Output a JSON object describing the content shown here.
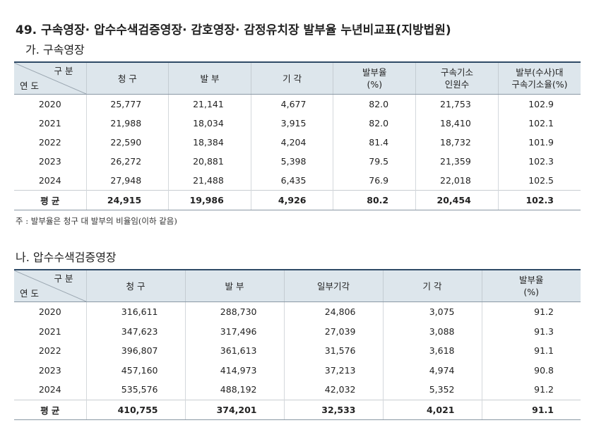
{
  "title": "49. 구속영장· 압수수색검증영장· 감호영장· 감정유치장 발부율 누년비교표(지방법원)",
  "section1": {
    "heading": "가. 구속영장",
    "table": {
      "corner": {
        "top": "구 분",
        "bottom": "연 도"
      },
      "columns": [
        [
          "청 구"
        ],
        [
          "발 부"
        ],
        [
          "기 각"
        ],
        [
          "발부율",
          "(%)"
        ],
        [
          "구속기소",
          "인원수"
        ],
        [
          "발부(수사)대",
          "구속기소율(%)"
        ]
      ],
      "rows": [
        [
          "2020",
          "25,777",
          "21,141",
          "4,677",
          "82.0",
          "21,753",
          "102.9"
        ],
        [
          "2021",
          "21,988",
          "18,034",
          "3,915",
          "82.0",
          "18,410",
          "102.1"
        ],
        [
          "2022",
          "22,590",
          "18,384",
          "4,204",
          "81.4",
          "18,732",
          "101.9"
        ],
        [
          "2023",
          "26,272",
          "20,881",
          "5,398",
          "79.5",
          "21,359",
          "102.3"
        ],
        [
          "2024",
          "27,948",
          "21,488",
          "6,435",
          "76.9",
          "22,018",
          "102.5"
        ],
        [
          "평 균",
          "24,915",
          "19,986",
          "4,926",
          "80.2",
          "20,454",
          "102.3"
        ]
      ]
    },
    "note": "주 : 발부율은 청구 대 발부의 비율임(이하 같음)"
  },
  "section2": {
    "heading": "나. 압수수색검증영장",
    "table": {
      "corner": {
        "top": "구 분",
        "bottom": "연 도"
      },
      "columns": [
        [
          "청 구"
        ],
        [
          "발 부"
        ],
        [
          "일부기각"
        ],
        [
          "기 각"
        ],
        [
          "발부율",
          "(%)"
        ]
      ],
      "rows": [
        [
          "2020",
          "316,611",
          "288,730",
          "24,806",
          "3,075",
          "91.2"
        ],
        [
          "2021",
          "347,623",
          "317,496",
          "27,039",
          "3,088",
          "91.3"
        ],
        [
          "2022",
          "396,807",
          "361,613",
          "31,576",
          "3,618",
          "91.1"
        ],
        [
          "2023",
          "457,160",
          "414,973",
          "37,213",
          "4,974",
          "90.8"
        ],
        [
          "2024",
          "535,576",
          "488,192",
          "42,032",
          "5,352",
          "91.2"
        ],
        [
          "평 균",
          "410,755",
          "374,201",
          "32,533",
          "4,021",
          "91.1"
        ]
      ]
    }
  }
}
